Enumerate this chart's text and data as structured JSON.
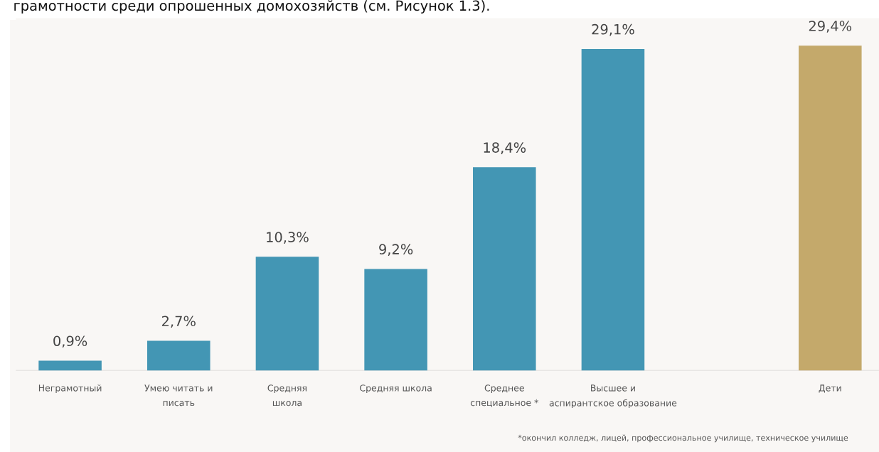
{
  "chart_data": {
    "type": "bar",
    "title": "грамотности среди опрошенных домохозяйств (см. Рисунок 1.3).",
    "categories": [
      "Неграмотный",
      "Умею читать и\nписать",
      "Средняя\nшкола",
      "Средняя школа",
      "Среднее\nспециальное *",
      "Высшее и\nаспирантское образование",
      null,
      "Дети"
    ],
    "values": [
      0.9,
      2.7,
      10.3,
      9.2,
      18.4,
      29.1,
      null,
      29.4
    ],
    "colors": [
      "#4396b4",
      "#4396b4",
      "#4396b4",
      "#4396b4",
      "#4396b4",
      "#4396b4",
      "#4396b4",
      "#c4a96b"
    ],
    "value_labels": [
      "0,9%",
      "2,7%",
      "10,3%",
      "9,2%",
      "18,4%",
      "29,1%",
      null,
      "29,4%"
    ],
    "annotations": [
      "*окончил колледж, лицей, профессиональное училище, техническое училище"
    ],
    "grid": false,
    "legend": false
  }
}
